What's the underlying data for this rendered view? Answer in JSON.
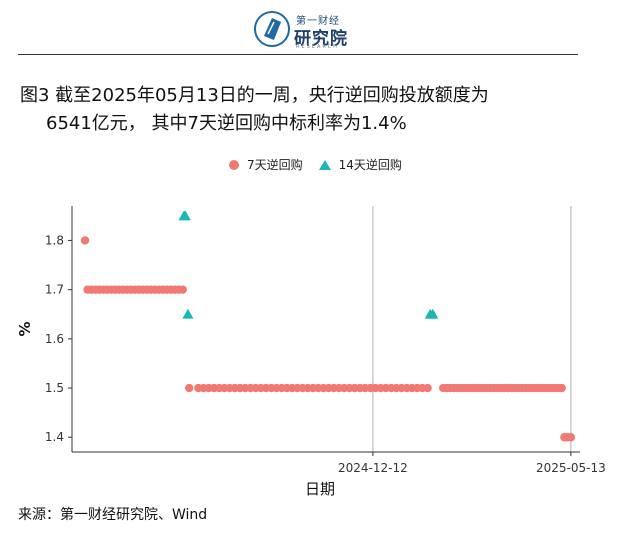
{
  "logo": {
    "title": "第一财经",
    "main": "研究院",
    "sub": "RESEARCH",
    "icon": "book-icon",
    "accent": "#1f6aa5"
  },
  "figure": {
    "title_line1": "图3  截至2025年05月13日的一周，央行逆回购投放额度为",
    "title_line2": "6541亿元， 其中7天逆回购中标利率为1.4%"
  },
  "source": "来源：第一财经研究院、Wind",
  "chart_data": {
    "type": "scatter",
    "xlabel": "日期",
    "ylabel": "%",
    "x_ticks": [
      "2024-12-12",
      "2025-05-13"
    ],
    "y_ticks": [
      1.4,
      1.5,
      1.6,
      1.7,
      1.8
    ],
    "ylim": [
      1.37,
      1.87
    ],
    "xlim": [
      "2024-04-25",
      "2025-05-20"
    ],
    "grid": "vertical-major",
    "legend_position": "top",
    "series": [
      {
        "name": "7天逆回购",
        "color": "#f07a73",
        "marker": "circle",
        "points": [
          {
            "segment_start": "2024-05-05",
            "segment_end": "2024-05-05",
            "value": 1.8,
            "count": 1
          },
          {
            "segment_start": "2024-05-07",
            "segment_end": "2024-07-19",
            "value": 1.7,
            "count": 25
          },
          {
            "segment_start": "2024-07-24",
            "segment_end": "2024-07-24",
            "value": 1.5,
            "count": 1
          },
          {
            "segment_start": "2024-07-31",
            "segment_end": "2025-01-23",
            "value": 1.5,
            "count": 45
          },
          {
            "segment_start": "2025-02-04",
            "segment_end": "2025-05-06",
            "value": 1.5,
            "count": 34
          },
          {
            "segment_start": "2025-05-08",
            "segment_end": "2025-05-13",
            "value": 1.4,
            "count": 3
          }
        ]
      },
      {
        "name": "14天逆回购",
        "color": "#1ab7b5",
        "marker": "triangle",
        "points": [
          {
            "date": "2024-07-20",
            "value": 1.85
          },
          {
            "date": "2024-07-21",
            "value": 1.85
          },
          {
            "date": "2024-07-23",
            "value": 1.65
          },
          {
            "date": "2025-01-25",
            "value": 1.65
          },
          {
            "date": "2025-01-27",
            "value": 1.65
          }
        ]
      }
    ]
  }
}
